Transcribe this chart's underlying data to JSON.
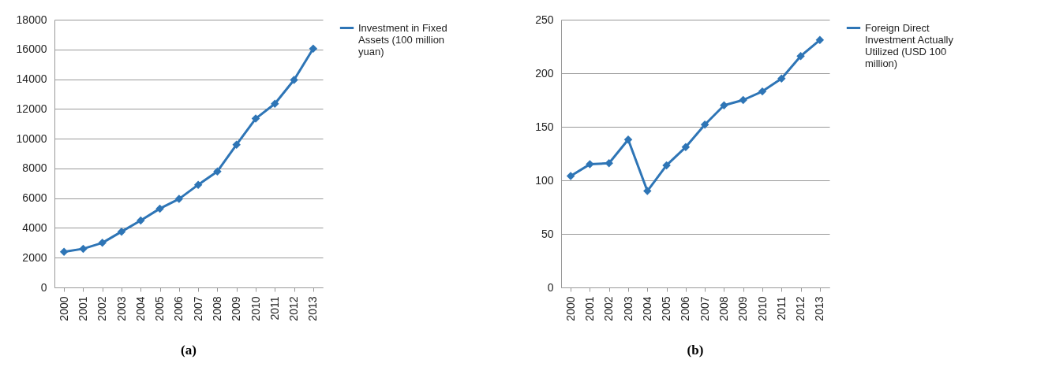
{
  "chart_data": [
    {
      "type": "line",
      "title": "(a)",
      "categories": [
        "2000",
        "2001",
        "2002",
        "2003",
        "2004",
        "2005",
        "2006",
        "2007",
        "2008",
        "2009",
        "2010",
        "2011",
        "2012",
        "2013"
      ],
      "series": [
        {
          "name": "Investment in Fixed Assets (100 million yuan)",
          "color": "#2e75b6",
          "values": [
            2400,
            2600,
            3000,
            3750,
            4500,
            5300,
            5950,
            6900,
            7800,
            9600,
            11350,
            12350,
            13950,
            16050
          ]
        }
      ],
      "ylim": [
        0,
        18000
      ],
      "yticks": [
        0,
        2000,
        4000,
        6000,
        8000,
        10000,
        12000,
        14000,
        16000,
        18000
      ],
      "grid": "y",
      "legend": "right",
      "marker": "diamond"
    },
    {
      "type": "line",
      "title": "(b)",
      "categories": [
        "2000",
        "2001",
        "2002",
        "2003",
        "2004",
        "2005",
        "2006",
        "2007",
        "2008",
        "2009",
        "2010",
        "2011",
        "2012",
        "2013"
      ],
      "series": [
        {
          "name": "Foreign Direct Investment Actually Utilized (USD 100 million)",
          "color": "#2e75b6",
          "values": [
            104,
            115,
            116,
            138,
            90,
            114,
            131,
            152,
            170,
            175,
            183,
            195,
            216,
            231
          ]
        }
      ],
      "ylim": [
        0,
        250
      ],
      "yticks": [
        0,
        50,
        100,
        150,
        200,
        250
      ],
      "grid": "y",
      "legend": "right",
      "marker": "diamond"
    }
  ]
}
